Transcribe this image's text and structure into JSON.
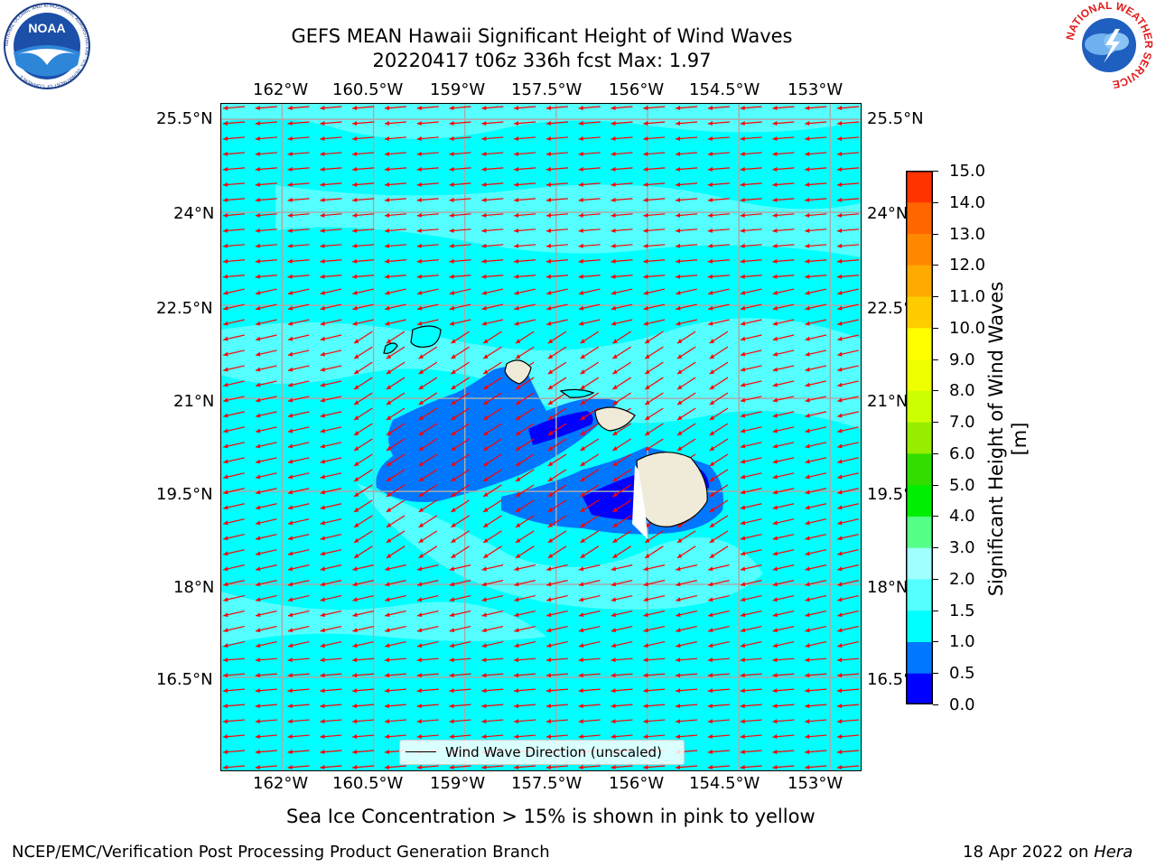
{
  "title": {
    "line1": "GEFS MEAN Hawaii Significant Height of Wind Waves",
    "line2": "20220417 t06z 336h fcst   Max: 1.97"
  },
  "map": {
    "lon_ticks_top": [
      "162°W",
      "160.5°W",
      "159°W",
      "157.5°W",
      "156°W",
      "154.5°W",
      "153°W"
    ],
    "lon_ticks_bottom": [
      "162°W",
      "160.5°W",
      "159°W",
      "157.5°W",
      "156°W",
      "154.5°W",
      "153°W"
    ],
    "lat_ticks_left": [
      "25.5°N",
      "24°N",
      "22.5°N",
      "21°N",
      "19.5°N",
      "18°N",
      "16.5°N"
    ],
    "lat_ticks_right": [
      "25.5°N",
      "24°N",
      "22.5°N",
      "21°N",
      "19.5°N",
      "18°N",
      "16.5°N"
    ],
    "lon_range": [
      -163,
      -152.5
    ],
    "lat_range": [
      15,
      25.75
    ],
    "grid": true,
    "arrow_color": "#ff0000",
    "land_color": "#efebd8",
    "background_color": "#00ffff"
  },
  "colorbar": {
    "labels": [
      "15.0",
      "14.0",
      "13.0",
      "12.0",
      "11.0",
      "10.0",
      "9.0",
      "8.0",
      "7.0",
      "6.0",
      "5.0",
      "4.0",
      "3.0",
      "2.0",
      "1.5",
      "1.0",
      "0.5",
      "0.0"
    ],
    "colors": [
      "#0000ff",
      "#0077ff",
      "#00ffff",
      "#55ffff",
      "#a0ffff",
      "#55ff88",
      "#00ee00",
      "#33dd00",
      "#99ee00",
      "#ccff00",
      "#eeff00",
      "#ffff00",
      "#ffcc00",
      "#ffaa00",
      "#ff8800",
      "#ff6600",
      "#ff3300"
    ],
    "title": "Significant Height of Wind Waves [m]"
  },
  "legend": {
    "label": "Wind Wave Direction (unscaled)"
  },
  "footer": {
    "note": "Sea Ice Concentration > 15% is shown in pink to yellow",
    "org": "NCEP/EMC/Verification Post Processing Product Generation Branch",
    "date": "18 Apr 2022 on",
    "machine": "Hera"
  },
  "logos": {
    "left": {
      "text": "NOAA",
      "ring_text": "NATIONAL OCEANIC AND ATMOSPHERIC ADMINISTRATION · U.S. DEPARTMENT OF COMMERCE"
    },
    "right": {
      "ring_text": "NATIONAL WEATHER SERVICE"
    }
  }
}
